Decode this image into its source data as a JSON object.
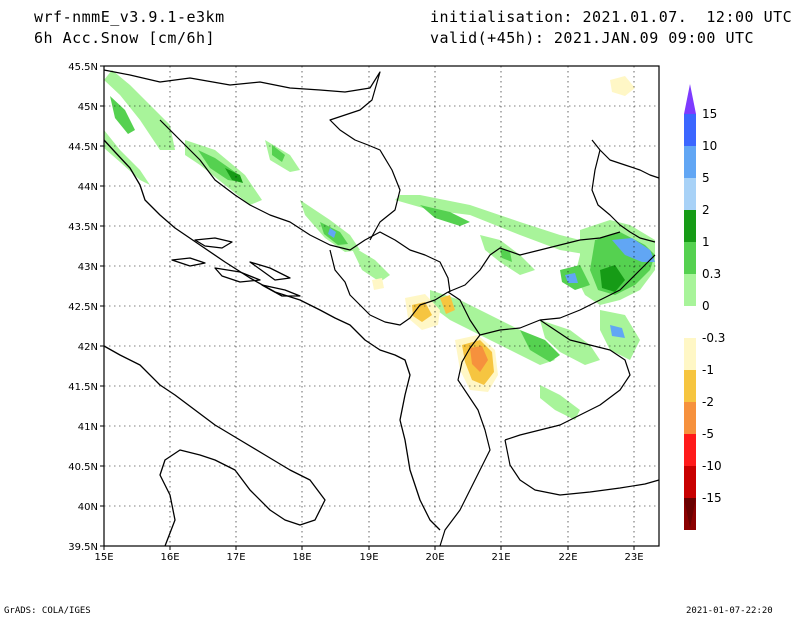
{
  "header": {
    "model": "wrf-nmmE_v3.9.1-e3km",
    "field": "6h Acc.Snow [cm/6h]",
    "init": "initialisation: 2021.01.07.  12:00 UTC",
    "valid": "valid(+45h): 2021.JAN.09 09:00 UTC"
  },
  "footer": {
    "left": "GrADS: COLA/IGES",
    "right": "2021-01-07-22:20"
  },
  "axes": {
    "lat_labels": [
      "45.5N",
      "45N",
      "44.5N",
      "44N",
      "43.5N",
      "43N",
      "42.5N",
      "42N",
      "41.5N",
      "41N",
      "40.5N",
      "40N",
      "39.5N"
    ],
    "lon_labels": [
      "15E",
      "16E",
      "17E",
      "18E",
      "19E",
      "20E",
      "21E",
      "22E",
      "23E"
    ]
  },
  "colorbar": {
    "labels": [
      "15",
      "10",
      "5",
      "2",
      "1",
      "0.3",
      "0",
      "-0.3",
      "-1",
      "-2",
      "-5",
      "-10",
      "-15"
    ],
    "colors": [
      "#7e3bff",
      "#3b66ff",
      "#61a6f4",
      "#a8d2f7",
      "#169b16",
      "#55d150",
      "#a8f49a",
      "#ffffff",
      "#fff7c6",
      "#f6c540",
      "#f6913d",
      "#ff1a1a",
      "#c80000",
      "#8b0000",
      "#6a0000"
    ]
  },
  "colors": {
    "snow_light": "#a8f49a",
    "snow_mid": "#55d150",
    "snow_heavy": "#169b16",
    "snow_blue": "#61a6f4",
    "neg_light": "#fff7c6",
    "neg_mid": "#f6c540",
    "neg_strong": "#f6913d"
  }
}
